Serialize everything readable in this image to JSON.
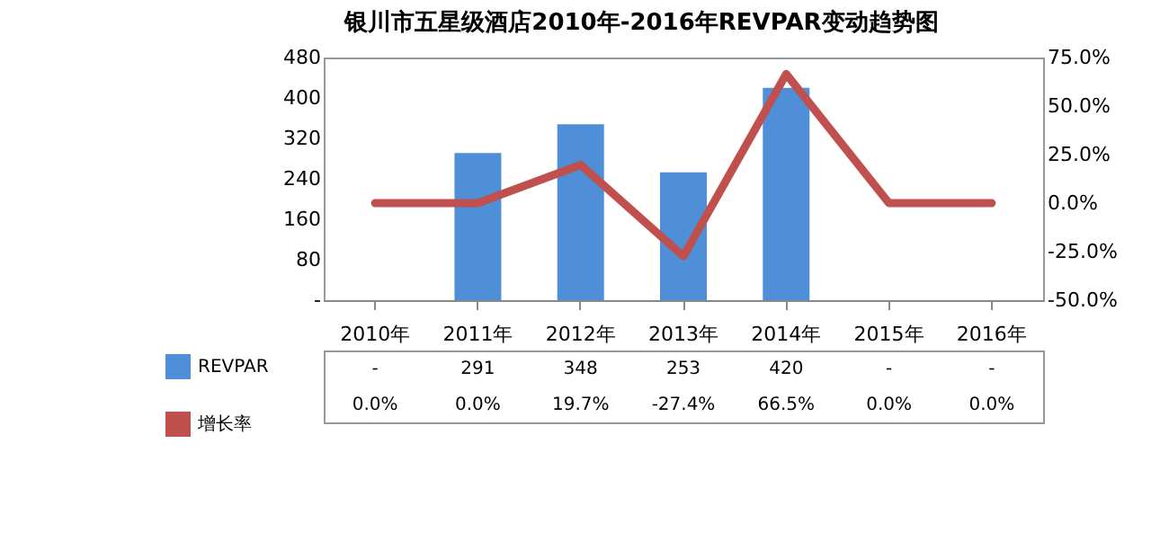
{
  "chart_data": {
    "type": "bar",
    "title": "银川市五星级酒店2010年-2016年REVPAR变动趋势图",
    "categories": [
      "2010年",
      "2011年",
      "2012年",
      "2013年",
      "2014年",
      "2015年",
      "2016年"
    ],
    "series": [
      {
        "name": "REVPAR",
        "color": "#4f8fd8",
        "values": [
          null,
          291,
          348,
          253,
          420,
          null,
          null
        ],
        "value_labels": [
          "-",
          "291",
          "348",
          "253",
          "420",
          "-",
          "-"
        ]
      },
      {
        "name": "增长率",
        "type": "line",
        "axis": "y2",
        "color": "#c0504d",
        "values": [
          0.0,
          0.0,
          19.7,
          -27.4,
          66.5,
          0.0,
          0.0
        ],
        "value_labels": [
          "0.0%",
          "0.0%",
          "19.7%",
          "-27.4%",
          "66.5%",
          "0.0%",
          "0.0%"
        ]
      }
    ],
    "ylim": [
      0,
      480
    ],
    "yticks": [
      {
        "value": 0,
        "label": "-"
      },
      80,
      160,
      240,
      320,
      400,
      480
    ],
    "y2lim": [
      -50,
      75
    ],
    "y2ticks": [
      {
        "value": -50,
        "label": "-50.0%"
      },
      {
        "value": -25,
        "label": "-25.0%"
      },
      {
        "value": 0,
        "label": "0.0%"
      },
      {
        "value": 25,
        "label": "25.0%"
      },
      {
        "value": 50,
        "label": "50.0%"
      },
      {
        "value": 75,
        "label": "75.0%"
      }
    ],
    "legend": "bottom",
    "grid": false
  }
}
